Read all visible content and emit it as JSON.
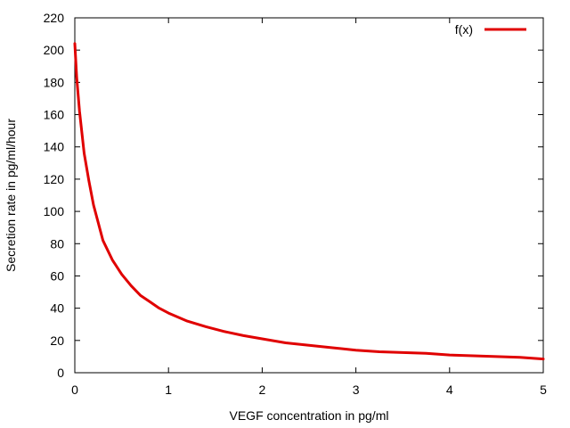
{
  "chart_data": {
    "type": "line",
    "title": "",
    "xlabel": "VEGF concentration in pg/ml",
    "ylabel": "Secretion rate in pg/ml/hour",
    "xlim": [
      0,
      5
    ],
    "ylim": [
      0,
      220
    ],
    "x_ticks": [
      "0",
      "1",
      "2",
      "3",
      "4",
      "5"
    ],
    "y_ticks": [
      "0",
      "20",
      "40",
      "60",
      "80",
      "100",
      "120",
      "140",
      "160",
      "180",
      "200",
      "220"
    ],
    "grid": false,
    "legend_position": "top-right",
    "series": [
      {
        "name": "f(x)",
        "color": "#e00000",
        "x": [
          0,
          0.02,
          0.05,
          0.1,
          0.15,
          0.2,
          0.25,
          0.3,
          0.4,
          0.5,
          0.6,
          0.7,
          0.8,
          0.9,
          1.0,
          1.2,
          1.4,
          1.6,
          1.8,
          2.0,
          2.25,
          2.5,
          2.75,
          3.0,
          3.25,
          3.5,
          3.75,
          4.0,
          4.25,
          4.5,
          4.75,
          5.0
        ],
        "y": [
          204,
          183,
          162,
          136,
          119,
          104,
          93,
          82,
          70,
          61,
          54,
          48,
          44,
          40,
          37,
          32,
          28.5,
          25.5,
          23,
          21,
          18.5,
          17,
          15.5,
          14,
          13,
          12.5,
          12,
          11,
          10.5,
          10,
          9.5,
          8.5
        ]
      }
    ]
  }
}
